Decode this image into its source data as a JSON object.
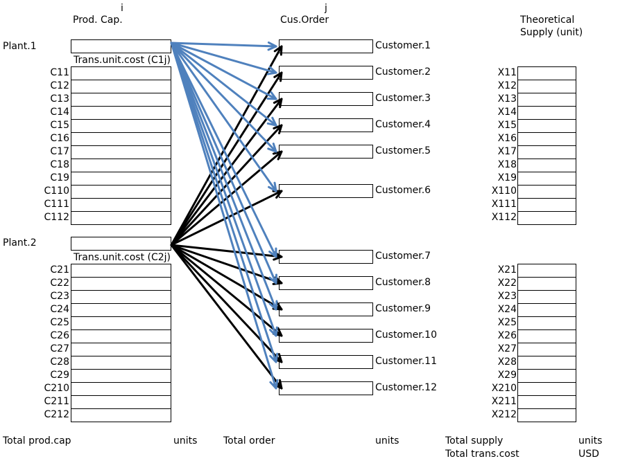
{
  "header": {
    "i_label": "i",
    "prod_cap_label": "Prod. Cap.",
    "j_label": "j",
    "cus_order_label": "Cus.Order",
    "theoretical_label": "Theoretical",
    "supply_unit_label": "Supply (unit)"
  },
  "plants": [
    {
      "name": "Plant.1",
      "trans_cost_label": "Trans.unit.cost (C1j)",
      "costs": [
        "C11",
        "C12",
        "C13",
        "C14",
        "C15",
        "C16",
        "C17",
        "C18",
        "C19",
        "C110",
        "C111",
        "C112"
      ],
      "supplies": [
        "X11",
        "X12",
        "X13",
        "X14",
        "X15",
        "X16",
        "X17",
        "X18",
        "X19",
        "X110",
        "X111",
        "X112"
      ]
    },
    {
      "name": "Plant.2",
      "trans_cost_label": "Trans.unit.cost (C2j)",
      "costs": [
        "C21",
        "C22",
        "C23",
        "C24",
        "C25",
        "C26",
        "C27",
        "C28",
        "C29",
        "C210",
        "C211",
        "C212"
      ],
      "supplies": [
        "X21",
        "X22",
        "X23",
        "X24",
        "X25",
        "X26",
        "X27",
        "X28",
        "X29",
        "X210",
        "X211",
        "X212"
      ]
    }
  ],
  "customers": [
    "Customer.1",
    "Customer.2",
    "Customer.3",
    "Customer.4",
    "Customer.5",
    "Customer.6",
    "Customer.7",
    "Customer.8",
    "Customer.9",
    "Customer.10",
    "Customer.11",
    "Customer.12"
  ],
  "footer": {
    "total_prod_cap": "Total prod.cap",
    "units_1": "units",
    "total_order": "Total order",
    "units_2": "units",
    "total_supply": "Total supply",
    "units_3": "units",
    "total_trans_cost": "Total trans.cost",
    "usd": "USD"
  },
  "colors": {
    "plant1_arrows": "#4f81bd",
    "plant2_arrows": "#000000"
  }
}
